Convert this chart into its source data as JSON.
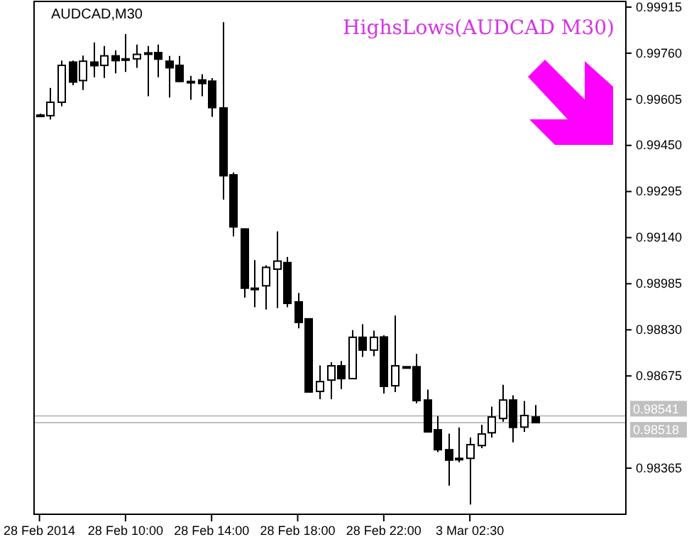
{
  "chart_data": {
    "type": "candlestick",
    "title": "AUDCAD,M30",
    "color": "#000000",
    "categories": [
      "28 Feb 2014",
      null,
      null,
      null,
      null,
      null,
      null,
      null,
      "28 Feb 10:00",
      null,
      null,
      null,
      null,
      null,
      null,
      null,
      "28 Feb 14:00",
      null,
      null,
      null,
      null,
      null,
      null,
      null,
      "28 Feb 18:00",
      null,
      null,
      null,
      null,
      null,
      null,
      null,
      "28 Feb 22:00",
      null,
      null,
      null,
      null,
      null,
      null,
      null,
      "3 Mar 02:30",
      null,
      null,
      null,
      null,
      null,
      null,
      null,
      null,
      null,
      null,
      null,
      null,
      null,
      null
    ],
    "ohlc": [
      [
        0.99552,
        0.99557,
        0.99547,
        0.99552
      ],
      [
        0.9955,
        0.99643,
        0.99537,
        0.99595
      ],
      [
        0.99595,
        0.99735,
        0.99582,
        0.99719
      ],
      [
        0.9973,
        0.99735,
        0.99652,
        0.99663
      ],
      [
        0.99668,
        0.99752,
        0.99636,
        0.99733
      ],
      [
        0.9973,
        0.99796,
        0.99679,
        0.99718
      ],
      [
        0.99719,
        0.99784,
        0.99677,
        0.99751
      ],
      [
        0.99751,
        0.9977,
        0.99692,
        0.99735
      ],
      [
        0.99741,
        0.99824,
        0.99697,
        0.99737
      ],
      [
        0.99741,
        0.99789,
        0.99711,
        0.99756
      ],
      [
        0.99761,
        0.99784,
        0.99615,
        0.9976
      ],
      [
        0.99762,
        0.99789,
        0.99679,
        0.9974
      ],
      [
        0.99733,
        0.99751,
        0.99611,
        0.99711
      ],
      [
        0.99719,
        0.99751,
        0.99663,
        0.99665
      ],
      [
        0.99665,
        0.99684,
        0.99603,
        0.99664
      ],
      [
        0.9967,
        0.99689,
        0.99615,
        0.99658
      ],
      [
        0.99666,
        0.99676,
        0.99546,
        0.99577
      ],
      [
        0.99576,
        0.99864,
        0.99268,
        0.99348
      ],
      [
        0.99351,
        0.99359,
        0.99144,
        0.99176
      ],
      [
        0.99169,
        0.99171,
        0.98938,
        0.9897
      ],
      [
        0.9897,
        0.99064,
        0.98906,
        0.98969
      ],
      [
        0.98978,
        0.99047,
        0.98898,
        0.9904
      ],
      [
        0.99034,
        0.99161,
        0.98903,
        0.99061
      ],
      [
        0.99056,
        0.99075,
        0.98906,
        0.98919
      ],
      [
        0.98924,
        0.98954,
        0.98835,
        0.98855
      ],
      [
        0.98867,
        0.98867,
        0.98621,
        0.98621
      ],
      [
        0.98623,
        0.9871,
        0.98597,
        0.98656
      ],
      [
        0.98661,
        0.98721,
        0.98597,
        0.98709
      ],
      [
        0.98709,
        0.98725,
        0.98631,
        0.98666
      ],
      [
        0.98666,
        0.98829,
        0.98666,
        0.98805
      ],
      [
        0.98805,
        0.98849,
        0.98739,
        0.98762
      ],
      [
        0.98762,
        0.98827,
        0.98741,
        0.98805
      ],
      [
        0.98806,
        0.98812,
        0.98616,
        0.9864
      ],
      [
        0.98642,
        0.98878,
        0.98621,
        0.98709
      ],
      [
        0.98706,
        0.98706,
        0.98705,
        0.98705
      ],
      [
        0.98706,
        0.98749,
        0.98583,
        0.98592
      ],
      [
        0.98594,
        0.98629,
        0.98487,
        0.98487
      ],
      [
        0.98494,
        0.9854,
        0.98419,
        0.98427
      ],
      [
        0.98427,
        0.98481,
        0.98306,
        0.98392
      ],
      [
        0.98398,
        0.98502,
        0.98385,
        0.98397
      ],
      [
        0.98398,
        0.98468,
        0.98243,
        0.98444
      ],
      [
        0.98441,
        0.98511,
        0.98432,
        0.9848
      ],
      [
        0.98484,
        0.98572,
        0.98468,
        0.98537
      ],
      [
        0.98532,
        0.98645,
        0.98521,
        0.98594
      ],
      [
        0.98594,
        0.9861,
        0.98452,
        0.98502
      ],
      [
        0.98503,
        0.98591,
        0.98487,
        0.98542
      ],
      [
        0.98537,
        0.98577,
        0.98518,
        0.98518
      ],
      null,
      null,
      null,
      null,
      null,
      null,
      null,
      null
    ],
    "ylim": [
      0.9821,
      0.99934
    ],
    "yticks": [
      0.99915,
      {
        "value": 0.9976,
        "label": "0.99760"
      },
      0.99605,
      {
        "value": 0.9945,
        "label": "0.99450"
      },
      0.99295,
      {
        "value": 0.9914,
        "label": "0.99140"
      },
      0.98985,
      {
        "value": 0.9883,
        "label": "0.98830"
      },
      0.98675,
      0.98365
    ],
    "ref_lines": [
      {
        "axis": "y",
        "value": 0.98541,
        "label": "0.98541",
        "color": "#c0c0c0"
      },
      {
        "axis": "y",
        "value": 0.98518,
        "label": "0.98518",
        "color": "#c0c0c0"
      }
    ],
    "annotations": [
      "HighsLows(AUDCAD M30)"
    ],
    "grid": false
  }
}
